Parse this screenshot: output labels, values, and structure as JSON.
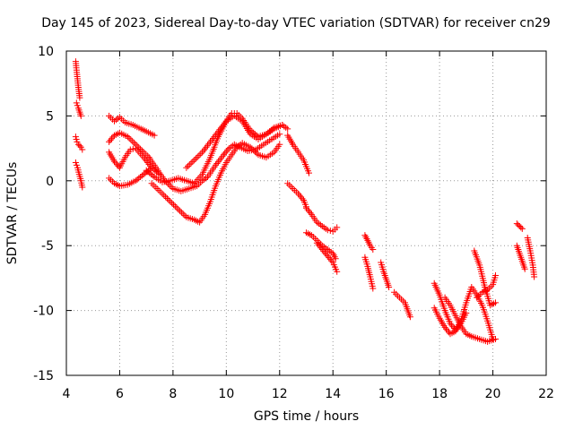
{
  "chart_data": {
    "type": "scatter",
    "title": "Day 145 of 2023, Sidereal Day-to-day VTEC variation (SDTVAR) for receiver cn29",
    "xlabel": "GPS time / hours",
    "ylabel": "SDTVAR / TECUs",
    "xlim": [
      4,
      22
    ],
    "ylim": [
      -15,
      10
    ],
    "xticks": [
      4,
      6,
      8,
      10,
      12,
      14,
      16,
      18,
      20,
      22
    ],
    "yticks": [
      -15,
      -10,
      -5,
      0,
      5,
      10
    ],
    "grid": true,
    "marker": "+",
    "color": "#ff0000",
    "segments": [
      {
        "x": [
          4.35,
          4.4,
          4.45,
          4.5
        ],
        "y": [
          9.2,
          8.2,
          7.2,
          6.4
        ]
      },
      {
        "x": [
          4.38,
          4.45,
          4.5,
          4.55
        ],
        "y": [
          6.0,
          5.6,
          5.3,
          5.0
        ]
      },
      {
        "x": [
          4.35,
          4.4,
          4.45,
          4.55,
          4.6
        ],
        "y": [
          3.4,
          3.0,
          2.8,
          2.6,
          2.4
        ]
      },
      {
        "x": [
          4.35,
          4.42,
          4.48,
          4.55,
          4.6
        ],
        "y": [
          1.4,
          1.0,
          0.5,
          0.0,
          -0.5
        ]
      },
      {
        "x": [
          5.6,
          5.8,
          6.0,
          6.2,
          6.5,
          6.8,
          7.0,
          7.3
        ],
        "y": [
          5.0,
          4.6,
          4.9,
          4.5,
          4.3,
          4.0,
          3.8,
          3.5
        ]
      },
      {
        "x": [
          5.6,
          5.8,
          6.0,
          6.3,
          6.6,
          6.9,
          7.1
        ],
        "y": [
          3.0,
          3.5,
          3.7,
          3.4,
          2.8,
          2.2,
          1.8
        ]
      },
      {
        "x": [
          5.6,
          5.8,
          6.0,
          6.2,
          6.4,
          6.6,
          6.9,
          7.2
        ],
        "y": [
          2.2,
          1.5,
          1.0,
          1.8,
          2.4,
          2.5,
          1.8,
          1.0
        ]
      },
      {
        "x": [
          5.6,
          5.8,
          6.0,
          6.3,
          6.6,
          6.9,
          7.2,
          7.5
        ],
        "y": [
          0.2,
          -0.2,
          -0.4,
          -0.3,
          0.0,
          0.5,
          1.0,
          0.5
        ]
      },
      {
        "x": [
          7.1,
          7.3,
          7.5,
          7.7,
          8.0,
          8.3,
          8.6,
          8.9,
          9.1,
          9.3,
          9.6,
          9.9,
          10.1,
          10.3,
          10.5,
          10.8,
          11.1,
          11.4,
          11.7,
          12.0
        ],
        "y": [
          1.8,
          1.2,
          0.6,
          0.0,
          -0.6,
          -0.8,
          -0.6,
          -0.4,
          0.0,
          0.3,
          1.2,
          2.0,
          2.5,
          2.8,
          2.6,
          2.3,
          2.4,
          2.8,
          3.2,
          3.6
        ]
      },
      {
        "x": [
          7.2,
          7.4,
          7.6,
          7.9,
          8.2,
          8.5,
          8.8,
          9.0,
          9.2,
          9.4,
          9.6,
          9.8,
          10.0,
          10.2,
          10.4,
          10.6,
          10.9,
          11.2,
          11.5,
          11.8,
          12.0
        ],
        "y": [
          -0.2,
          -0.6,
          -1.0,
          -1.6,
          -2.2,
          -2.8,
          -3.0,
          -3.2,
          -2.6,
          -1.6,
          -0.4,
          0.6,
          1.4,
          2.0,
          2.6,
          2.9,
          2.6,
          2.0,
          1.8,
          2.2,
          2.8
        ]
      },
      {
        "x": [
          7.0,
          7.3,
          7.6,
          7.9,
          8.2,
          8.5,
          8.8,
          9.1,
          9.4,
          9.7,
          10.0,
          10.2,
          10.4,
          10.6,
          10.9,
          11.2,
          11.5,
          11.8,
          12.1,
          12.3
        ],
        "y": [
          0.8,
          0.3,
          -0.1,
          0.0,
          0.2,
          0.0,
          -0.2,
          0.5,
          1.8,
          3.4,
          4.6,
          5.2,
          5.2,
          4.8,
          3.9,
          3.4,
          3.6,
          4.0,
          4.3,
          4.0
        ]
      },
      {
        "x": [
          8.5,
          8.8,
          9.1,
          9.4,
          9.7,
          10.0,
          10.3,
          10.6,
          10.9,
          11.2,
          11.5,
          11.8,
          12.1
        ],
        "y": [
          1.0,
          1.6,
          2.2,
          3.0,
          3.8,
          4.6,
          5.0,
          4.6,
          3.6,
          3.2,
          3.6,
          4.1,
          4.3
        ]
      },
      {
        "x": [
          12.3,
          12.5,
          12.7,
          12.9,
          13.1
        ],
        "y": [
          3.5,
          2.8,
          2.2,
          1.6,
          0.6
        ]
      },
      {
        "x": [
          12.3,
          12.5,
          12.7,
          12.9,
          13.0
        ],
        "y": [
          -0.2,
          -0.6,
          -1.0,
          -1.5,
          -2.0
        ]
      },
      {
        "x": [
          13.0,
          13.2,
          13.4,
          13.6,
          13.8,
          14.0,
          14.15
        ],
        "y": [
          -2.1,
          -2.6,
          -3.2,
          -3.5,
          -3.8,
          -3.9,
          -3.6
        ]
      },
      {
        "x": [
          13.0,
          13.2,
          13.4,
          13.6,
          13.8,
          14.0,
          14.1
        ],
        "y": [
          -4.0,
          -4.2,
          -4.6,
          -5.0,
          -5.3,
          -5.6,
          -6.0
        ]
      },
      {
        "x": [
          13.4,
          13.6,
          13.8,
          14.0,
          14.15
        ],
        "y": [
          -4.8,
          -5.3,
          -5.8,
          -6.3,
          -7.0
        ]
      },
      {
        "x": [
          15.2,
          15.3,
          15.4,
          15.5
        ],
        "y": [
          -4.2,
          -4.6,
          -5.0,
          -5.3
        ]
      },
      {
        "x": [
          15.2,
          15.3,
          15.4,
          15.5
        ],
        "y": [
          -5.9,
          -6.6,
          -7.4,
          -8.3
        ]
      },
      {
        "x": [
          15.8,
          15.9,
          16.0,
          16.1
        ],
        "y": [
          -6.3,
          -7.0,
          -7.6,
          -8.2
        ]
      },
      {
        "x": [
          16.3,
          16.5,
          16.7,
          16.9
        ],
        "y": [
          -8.6,
          -9.0,
          -9.4,
          -10.5
        ]
      },
      {
        "x": [
          17.8,
          18.0,
          18.2,
          18.4,
          18.6,
          18.8,
          19.0,
          19.2,
          19.4,
          19.6,
          19.8,
          20.0
        ],
        "y": [
          -7.9,
          -8.8,
          -10.0,
          -11.0,
          -11.5,
          -10.8,
          -9.4,
          -8.2,
          -8.8,
          -9.6,
          -10.8,
          -12.2
        ]
      },
      {
        "x": [
          17.8,
          18.0,
          18.2,
          18.4,
          18.6,
          18.8,
          19.0
        ],
        "y": [
          -9.8,
          -10.6,
          -11.3,
          -11.8,
          -11.6,
          -11.0,
          -10.2
        ]
      },
      {
        "x": [
          18.2,
          18.4,
          18.6,
          18.8,
          19.0,
          19.2,
          19.5,
          19.8,
          20.1
        ],
        "y": [
          -9.0,
          -9.6,
          -10.4,
          -11.2,
          -11.8,
          -12.0,
          -12.2,
          -12.4,
          -12.2
        ]
      },
      {
        "x": [
          19.3,
          19.5,
          19.7,
          19.9,
          20.1
        ],
        "y": [
          -5.4,
          -6.5,
          -8.2,
          -9.6,
          -9.4
        ]
      },
      {
        "x": [
          19.4,
          19.6,
          19.8,
          20.0,
          20.1
        ],
        "y": [
          -9.0,
          -8.6,
          -8.4,
          -8.0,
          -7.3
        ]
      },
      {
        "x": [
          20.9,
          21.0,
          21.1
        ],
        "y": [
          -3.3,
          -3.5,
          -3.7
        ]
      },
      {
        "x": [
          20.9,
          21.0,
          21.1,
          21.2
        ],
        "y": [
          -5.0,
          -5.6,
          -6.2,
          -6.8
        ]
      },
      {
        "x": [
          21.3,
          21.4,
          21.5,
          21.55
        ],
        "y": [
          -4.4,
          -5.4,
          -6.5,
          -7.4
        ]
      }
    ]
  }
}
